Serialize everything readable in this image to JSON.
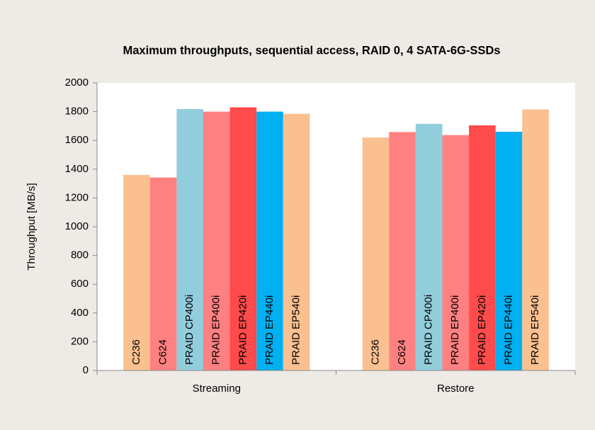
{
  "chart_data": {
    "type": "bar",
    "title": "Maximum throughputs, sequential access, RAID 0, 4 SATA-6G-SSDs",
    "y_label": "Throughput [MB/s]",
    "categories": [
      "Streaming",
      "Restore"
    ],
    "series": [
      {
        "name": "C236",
        "color": "#fac090",
        "values": [
          1360,
          1620
        ]
      },
      {
        "name": "C624",
        "color": "#ff8080",
        "values": [
          1342,
          1658
        ]
      },
      {
        "name": "PRAID CP400i",
        "color": "#92cddc",
        "values": [
          1818,
          1715
        ]
      },
      {
        "name": "PRAID EP400i",
        "color": "#ff8080",
        "values": [
          1800,
          1637
        ]
      },
      {
        "name": "PRAID EP420i",
        "color": "#ff4b4b",
        "values": [
          1830,
          1705
        ]
      },
      {
        "name": "PRAID EP440i",
        "color": "#00b0f0",
        "values": [
          1800,
          1660
        ]
      },
      {
        "name": "PRAID EP540i",
        "color": "#fac090",
        "values": [
          1785,
          1815
        ]
      }
    ],
    "ylim": [
      0,
      2000
    ],
    "yticks": [
      0,
      200,
      400,
      600,
      800,
      1000,
      1200,
      1400,
      1600,
      1800,
      2000
    ],
    "grid": false
  }
}
